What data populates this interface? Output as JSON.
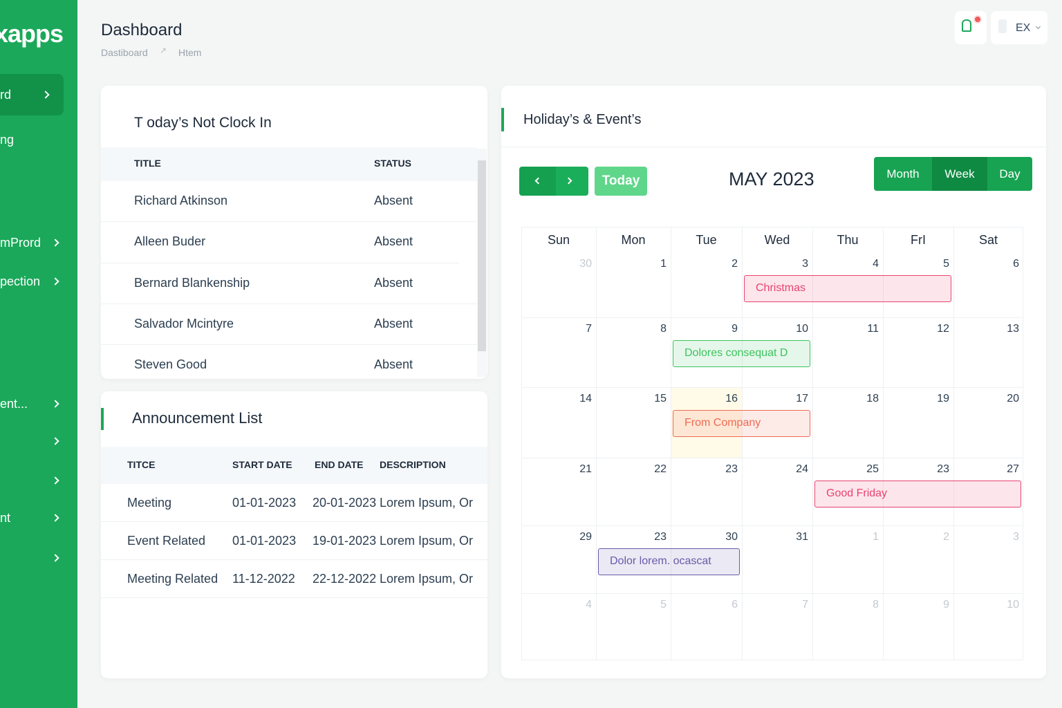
{
  "sidebar": {
    "logo": "xapps",
    "items": [
      "rd",
      "ng",
      "mPrord",
      "pection",
      "ent...",
      "nt"
    ]
  },
  "header": {
    "title": "Dashboard",
    "breadcrumb": [
      "Dastiboard",
      "Htem"
    ],
    "language": "EX"
  },
  "clock_in": {
    "title": "T oday’s Not Clock In",
    "columns": [
      "TITLE",
      "STATUS"
    ],
    "rows": [
      [
        "Richard Atkinson",
        "Absent"
      ],
      [
        "Alleen Buder",
        "Absent"
      ],
      [
        "Bernard Blankenship",
        "Absent"
      ],
      [
        "Salvador Mcintyre",
        "Absent"
      ],
      [
        "Steven Good",
        "Absent"
      ]
    ]
  },
  "announcements": {
    "title": "Announcement List",
    "columns": [
      "TITCE",
      "START DATE",
      "END DATE",
      "DESCRIPTION"
    ],
    "rows": [
      [
        "Meeting",
        "01-01-2023",
        "20-01-2023",
        "Lorem Ipsum, Or"
      ],
      [
        "Event Related",
        "01-01-2023",
        "19-01-2023",
        "Lorem Ipsum, Or"
      ],
      [
        "Meeting Related",
        "11-12-2022",
        "22-12-2022",
        "Lorem Ipsum, Or"
      ]
    ]
  },
  "calendar": {
    "title": "Holiday’s & Event’s",
    "today_button": "Today",
    "period": "MAY 2023",
    "views": [
      "Month",
      "Week",
      "Day"
    ],
    "weekdays": [
      "Sun",
      "Mon",
      "Tue",
      "Wed",
      "Thu",
      "FrI",
      "Sat"
    ],
    "weeks": [
      [
        30,
        1,
        2,
        3,
        4,
        5,
        6
      ],
      [
        7,
        8,
        9,
        10,
        11,
        12,
        13
      ],
      [
        14,
        15,
        16,
        17,
        18,
        19,
        20
      ],
      [
        21,
        22,
        23,
        24,
        25,
        23,
        27
      ],
      [
        29,
        23,
        30,
        31,
        1,
        2,
        3
      ],
      [
        4,
        5,
        6,
        7,
        8,
        9,
        10
      ]
    ],
    "events": [
      {
        "label": "Christmas",
        "color": "#e8436e"
      },
      {
        "label": "Dolores consequat D",
        "color": "#3cc35e"
      },
      {
        "label": "From Company",
        "color": "#ee6a55"
      },
      {
        "label": "Good Friday",
        "color": "#e8436e"
      },
      {
        "label": "Dolor lorem. ocascat",
        "color": "#6a5aaa"
      }
    ]
  }
}
